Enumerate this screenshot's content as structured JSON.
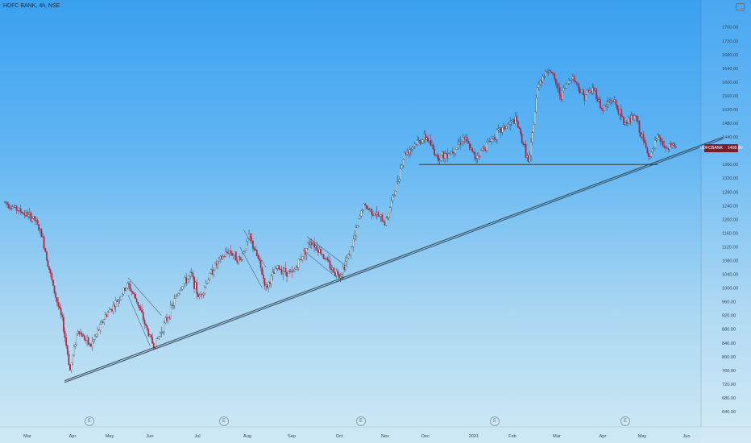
{
  "header": {
    "title": "HDFC BANK, 4h, NSE"
  },
  "icons": {
    "settings": "settings-icon",
    "earnings": "earnings-marker-icon"
  },
  "price_tag": {
    "label": "HDFCBANK",
    "value": "1408.00"
  },
  "earnings_markers": [
    {
      "label": "E"
    },
    {
      "label": "E"
    },
    {
      "label": "E"
    },
    {
      "label": "E"
    },
    {
      "label": "E"
    }
  ],
  "colors": {
    "up": "#1f3a4a",
    "down": "#b2203a",
    "trendline": "#2a3a45",
    "price_tag_bg": "#7a1e2b"
  },
  "chart_data": {
    "type": "candlestick",
    "title": "HDFC BANK, 4h, NSE",
    "y_ticks": [
      640,
      680,
      720,
      760,
      800,
      840,
      880,
      920,
      960,
      1000,
      1040,
      1080,
      1120,
      1160,
      1200,
      1240,
      1280,
      1320,
      1360,
      1400,
      1440,
      1480,
      1520,
      1560,
      1600,
      1640,
      1680,
      1720,
      1760
    ],
    "y_tick_labels": [
      "640.00",
      "680.00",
      "720.00",
      "760.00",
      "800.00",
      "840.00",
      "880.00",
      "920.00",
      "960.00",
      "1000.00",
      "1040.00",
      "1080.00",
      "1120.00",
      "1160.00",
      "1200.00",
      "1240.00",
      "1280.00",
      "1320.00",
      "1360.00",
      "1400.00",
      "1440.00",
      "1480.00",
      "1520.00",
      "1560.00",
      "1600.00",
      "1640.00",
      "1680.00",
      "1720.00",
      "1760.00"
    ],
    "x_tick_labels": [
      "Mar",
      "Apr",
      "May",
      "Jun",
      "Jul",
      "Aug",
      "Sep",
      "Oct",
      "Nov",
      "Dec",
      "2021",
      "Feb",
      "Mar",
      "Apr",
      "May",
      "Jun"
    ],
    "ylim": [
      620,
      1780
    ],
    "last_price": 1408,
    "price_path": [
      {
        "t": 0,
        "p": 1250
      },
      {
        "t": 0.4,
        "p": 1225
      },
      {
        "t": 0.8,
        "p": 1200
      },
      {
        "t": 1.0,
        "p": 1150
      },
      {
        "t": 1.3,
        "p": 1000
      },
      {
        "t": 1.55,
        "p": 900
      },
      {
        "t": 1.75,
        "p": 760
      },
      {
        "t": 1.95,
        "p": 880
      },
      {
        "t": 2.3,
        "p": 830
      },
      {
        "t": 2.7,
        "p": 920
      },
      {
        "t": 3.0,
        "p": 960
      },
      {
        "t": 3.3,
        "p": 1010
      },
      {
        "t": 3.55,
        "p": 960
      },
      {
        "t": 3.8,
        "p": 880
      },
      {
        "t": 4.0,
        "p": 830
      },
      {
        "t": 4.3,
        "p": 900
      },
      {
        "t": 4.7,
        "p": 1000
      },
      {
        "t": 5.0,
        "p": 1040
      },
      {
        "t": 5.2,
        "p": 970
      },
      {
        "t": 5.6,
        "p": 1060
      },
      {
        "t": 6.0,
        "p": 1110
      },
      {
        "t": 6.3,
        "p": 1080
      },
      {
        "t": 6.55,
        "p": 1150
      },
      {
        "t": 6.8,
        "p": 1080
      },
      {
        "t": 7.0,
        "p": 1000
      },
      {
        "t": 7.3,
        "p": 1060
      },
      {
        "t": 7.7,
        "p": 1040
      },
      {
        "t": 8.0,
        "p": 1100
      },
      {
        "t": 8.2,
        "p": 1140
      },
      {
        "t": 8.5,
        "p": 1100
      },
      {
        "t": 8.8,
        "p": 1050
      },
      {
        "t": 9.0,
        "p": 1040
      },
      {
        "t": 9.3,
        "p": 1120
      },
      {
        "t": 9.6,
        "p": 1240
      },
      {
        "t": 9.9,
        "p": 1220
      },
      {
        "t": 10.2,
        "p": 1190
      },
      {
        "t": 10.5,
        "p": 1300
      },
      {
        "t": 10.7,
        "p": 1390
      },
      {
        "t": 11.0,
        "p": 1420
      },
      {
        "t": 11.3,
        "p": 1440
      },
      {
        "t": 11.6,
        "p": 1380
      },
      {
        "t": 12.0,
        "p": 1400
      },
      {
        "t": 12.3,
        "p": 1440
      },
      {
        "t": 12.6,
        "p": 1380
      },
      {
        "t": 13.0,
        "p": 1430
      },
      {
        "t": 13.4,
        "p": 1470
      },
      {
        "t": 13.7,
        "p": 1490
      },
      {
        "t": 13.95,
        "p": 1400
      },
      {
        "t": 14.05,
        "p": 1360
      },
      {
        "t": 14.3,
        "p": 1600
      },
      {
        "t": 14.6,
        "p": 1640
      },
      {
        "t": 14.9,
        "p": 1560
      },
      {
        "t": 15.2,
        "p": 1620
      },
      {
        "t": 15.5,
        "p": 1560
      },
      {
        "t": 15.8,
        "p": 1580
      },
      {
        "t": 16.0,
        "p": 1520
      },
      {
        "t": 16.3,
        "p": 1550
      },
      {
        "t": 16.6,
        "p": 1480
      },
      {
        "t": 16.9,
        "p": 1500
      },
      {
        "t": 17.1,
        "p": 1430
      },
      {
        "t": 17.3,
        "p": 1380
      },
      {
        "t": 17.5,
        "p": 1440
      },
      {
        "t": 17.75,
        "p": 1400
      },
      {
        "t": 17.9,
        "p": 1420
      },
      {
        "t": 18.0,
        "p": 1408
      }
    ],
    "horizontal_line": {
      "price": 1360,
      "from_t": 11.1,
      "to_t": 17.5
    },
    "trendline": {
      "from": {
        "t": 1.6,
        "p": 730
      },
      "to": {
        "t": 20.0,
        "p": 1470
      }
    },
    "pattern_lines": [
      {
        "from": {
          "t": 3.3,
          "p": 1030
        },
        "to": {
          "t": 4.2,
          "p": 920
        }
      },
      {
        "from": {
          "t": 3.3,
          "p": 980
        },
        "to": {
          "t": 3.9,
          "p": 830
        }
      },
      {
        "from": {
          "t": 6.4,
          "p": 1170
        },
        "to": {
          "t": 7.0,
          "p": 1060
        }
      },
      {
        "from": {
          "t": 6.3,
          "p": 1120
        },
        "to": {
          "t": 6.9,
          "p": 1000
        }
      },
      {
        "from": {
          "t": 8.1,
          "p": 1150
        },
        "to": {
          "t": 9.2,
          "p": 1060
        }
      },
      {
        "from": {
          "t": 8.0,
          "p": 1110
        },
        "to": {
          "t": 8.9,
          "p": 1030
        }
      }
    ]
  }
}
